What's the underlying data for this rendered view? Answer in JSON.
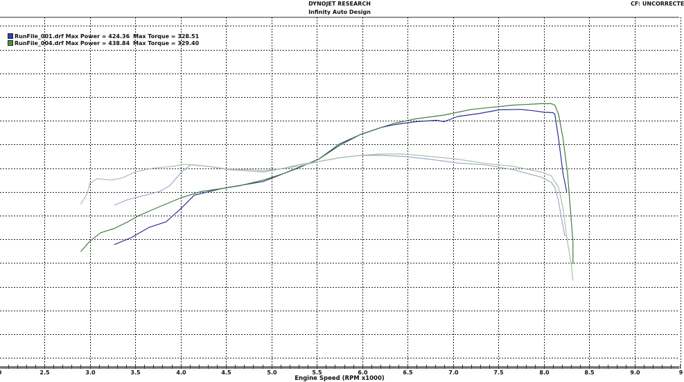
{
  "header": {
    "title": "DYNOJET RESEARCH",
    "subtitle": "Infinity Auto Design",
    "correction": "CF: UNCORRECTE"
  },
  "legend": [
    {
      "file": "RunFile_001.drf",
      "power_text": "RunFile_001.drf Max Power = 424.36",
      "torque_text": "Max Torque = 328.51",
      "color": "#2b2f8f"
    },
    {
      "file": "RunFile_004.drf",
      "power_text": "RunFile_004.drf Max Power = 438.84",
      "torque_text": "Max Torque = 329.40",
      "color": "#3e7d3e"
    }
  ],
  "chart_data": {
    "type": "line",
    "title": "DYNOJET RESEARCH",
    "subtitle": "Infinity Auto Design",
    "xlabel": "Engine Speed (RPM x1000)",
    "ylabel": "",
    "xlim": [
      2.0,
      9.5
    ],
    "ylim": [
      -120,
      618
    ],
    "x_ticks": [
      "2.0",
      "2.5",
      "3.0",
      "3.5",
      "4.0",
      "4.5",
      "5.0",
      "5.5",
      "6.0",
      "6.5",
      "7.0",
      "7.5",
      "8.0",
      "8.5",
      "9.0",
      "9.5"
    ],
    "x_tick_labels_visible": [
      "0",
      "2.5",
      "3.0",
      "3.5",
      "4.0",
      "4.5",
      "5.0",
      "5.5",
      "6.0",
      "6.5",
      "7.0",
      "7.5",
      "8.0",
      "8.5",
      "9.0",
      "9"
    ],
    "y_grid_step": 50,
    "grid": true,
    "grid_style": "dotted",
    "legend_position": "top-left",
    "series": [
      {
        "name": "RunFile_001.drf Max Power = 424.36",
        "kind": "power",
        "color": "#2b2f8f",
        "points": [
          [
            3.27,
            139
          ],
          [
            3.46,
            154
          ],
          [
            3.65,
            175
          ],
          [
            3.84,
            187
          ],
          [
            4.01,
            216
          ],
          [
            4.15,
            243
          ],
          [
            4.45,
            257
          ],
          [
            4.91,
            272
          ],
          [
            5.14,
            289
          ],
          [
            5.29,
            300
          ],
          [
            5.52,
            319
          ],
          [
            5.75,
            351
          ],
          [
            5.98,
            371
          ],
          [
            6.21,
            386
          ],
          [
            6.36,
            392
          ],
          [
            6.59,
            398
          ],
          [
            6.82,
            401
          ],
          [
            6.9,
            398
          ],
          [
            7.05,
            409
          ],
          [
            7.28,
            415
          ],
          [
            7.51,
            423
          ],
          [
            7.74,
            424
          ],
          [
            7.89,
            421
          ],
          [
            8.0,
            418
          ],
          [
            8.1,
            417
          ],
          [
            8.12,
            414
          ],
          [
            8.16,
            363
          ],
          [
            8.21,
            289
          ],
          [
            8.25,
            250
          ]
        ]
      },
      {
        "name": "RunFile_004.drf Max Power = 438.84",
        "kind": "power",
        "color": "#3e7d3e",
        "points": [
          [
            2.9,
            124
          ],
          [
            3.0,
            146
          ],
          [
            3.12,
            164
          ],
          [
            3.27,
            173
          ],
          [
            3.42,
            187
          ],
          [
            3.54,
            200
          ],
          [
            3.77,
            219
          ],
          [
            4.01,
            238
          ],
          [
            4.23,
            251
          ],
          [
            4.45,
            257
          ],
          [
            4.65,
            263
          ],
          [
            4.91,
            275
          ],
          [
            5.14,
            289
          ],
          [
            5.29,
            301
          ],
          [
            5.52,
            319
          ],
          [
            5.75,
            348
          ],
          [
            5.98,
            371
          ],
          [
            6.21,
            386
          ],
          [
            6.36,
            395
          ],
          [
            6.59,
            404
          ],
          [
            6.9,
            412
          ],
          [
            7.2,
            424
          ],
          [
            7.36,
            427
          ],
          [
            7.66,
            433
          ],
          [
            7.97,
            436
          ],
          [
            8.08,
            436
          ],
          [
            8.12,
            433
          ],
          [
            8.16,
            414
          ],
          [
            8.21,
            363
          ],
          [
            8.26,
            289
          ],
          [
            8.29,
            216
          ],
          [
            8.32,
            143
          ],
          [
            8.32,
            99
          ]
        ]
      },
      {
        "name": "RunFile_001.drf Max Torque = 328.51",
        "kind": "torque",
        "color": "#a3a6cc",
        "points": [
          [
            3.27,
            222
          ],
          [
            3.42,
            234
          ],
          [
            3.61,
            243
          ],
          [
            3.77,
            251
          ],
          [
            3.88,
            263
          ],
          [
            4.01,
            292
          ],
          [
            4.11,
            307
          ],
          [
            4.3,
            304
          ],
          [
            4.53,
            297
          ],
          [
            4.76,
            294
          ],
          [
            4.91,
            292
          ],
          [
            5.14,
            300
          ],
          [
            5.29,
            307
          ],
          [
            5.52,
            314
          ],
          [
            5.75,
            322
          ],
          [
            5.98,
            327
          ],
          [
            6.21,
            327
          ],
          [
            6.44,
            325
          ],
          [
            6.74,
            319
          ],
          [
            7.05,
            311
          ],
          [
            7.36,
            307
          ],
          [
            7.66,
            297
          ],
          [
            7.97,
            281
          ],
          [
            8.08,
            270
          ],
          [
            8.12,
            260
          ],
          [
            8.16,
            231
          ],
          [
            8.2,
            187
          ],
          [
            8.23,
            158
          ],
          [
            8.25,
            158
          ]
        ]
      },
      {
        "name": "RunFile_004.drf Max Torque = 329.40",
        "kind": "torque",
        "color": "#a6c0a6",
        "points": [
          [
            2.9,
            224
          ],
          [
            2.97,
            246
          ],
          [
            3.0,
            268
          ],
          [
            3.08,
            278
          ],
          [
            3.23,
            275
          ],
          [
            3.35,
            279
          ],
          [
            3.5,
            292
          ],
          [
            3.69,
            300
          ],
          [
            3.92,
            304
          ],
          [
            4.03,
            308
          ],
          [
            4.15,
            307
          ],
          [
            4.3,
            304
          ],
          [
            4.53,
            298
          ],
          [
            4.76,
            297
          ],
          [
            4.91,
            295
          ],
          [
            5.14,
            300
          ],
          [
            5.29,
            304
          ],
          [
            5.52,
            314
          ],
          [
            5.75,
            322
          ],
          [
            5.98,
            327
          ],
          [
            6.21,
            330
          ],
          [
            6.44,
            330
          ],
          [
            6.74,
            325
          ],
          [
            7.05,
            319
          ],
          [
            7.36,
            310
          ],
          [
            7.66,
            304
          ],
          [
            7.97,
            292
          ],
          [
            8.08,
            284
          ],
          [
            8.16,
            260
          ],
          [
            8.21,
            216
          ],
          [
            8.26,
            143
          ],
          [
            8.3,
            99
          ],
          [
            8.32,
            63
          ]
        ]
      }
    ]
  }
}
